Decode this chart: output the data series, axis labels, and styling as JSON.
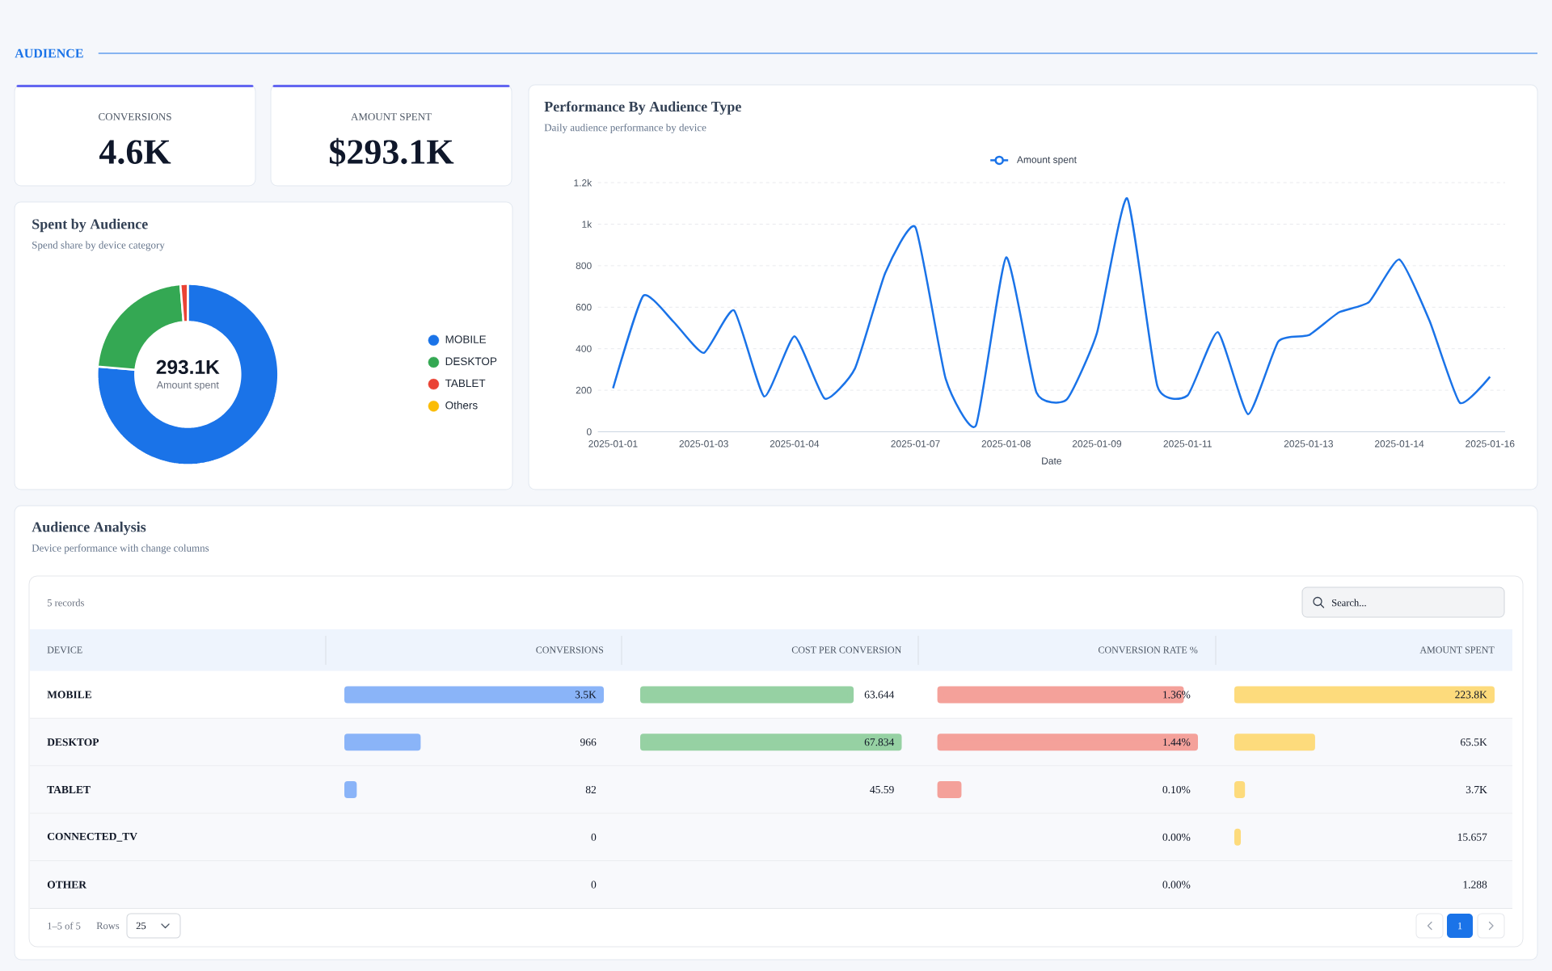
{
  "chart_data": [
    {
      "type": "other",
      "title": "AUDIENCE",
      "annotations": [
        "CONVERSIONS",
        "4.6K",
        "AMOUNT SPENT",
        "$293.1K"
      ]
    },
    {
      "type": "donut",
      "title": "Spent by Audience",
      "subtitle": "Spend share by device category",
      "categories": [
        "MOBILE",
        "DESKTOP",
        "TABLET",
        "Others"
      ],
      "values": [
        76.4,
        22.3,
        1.3,
        0
      ],
      "colors": [
        "#1a73e8",
        "#34a853",
        "#ea4335",
        "#fbbc04"
      ],
      "legend": "right",
      "annotations": [
        "293.1K",
        "Amount spent"
      ]
    },
    {
      "type": "line",
      "title": "Performance By Audience Type",
      "subtitle": "Daily audience performance by device",
      "xlabel": "Date",
      "categories": [
        "2025-01-01",
        null,
        null,
        "2025-01-03",
        null,
        null,
        "2025-01-04",
        null,
        null,
        null,
        "2025-01-07",
        null,
        null,
        "2025-01-08",
        null,
        null,
        "2025-01-09",
        null,
        null,
        "2025-01-11",
        null,
        null,
        null,
        "2025-01-13",
        null,
        null,
        "2025-01-14",
        null,
        null,
        "2025-01-16"
      ],
      "series": [
        {
          "name": "Amount spent",
          "color": "#1a73e8",
          "values": [
            210,
            655,
            530,
            380,
            585,
            170,
            460,
            160,
            305,
            765,
            985,
            255,
            30,
            840,
            190,
            155,
            475,
            1125,
            220,
            175,
            480,
            85,
            435,
            465,
            575,
            625,
            830,
            535,
            140,
            265
          ]
        }
      ],
      "ylim": [
        0,
        1200
      ],
      "yticks": [
        0,
        200,
        400,
        600,
        800,
        {
          "value": 1000,
          "label": "1k"
        },
        {
          "value": 1200,
          "label": "1.2k"
        }
      ],
      "grid": "y",
      "legend": "top"
    },
    {
      "type": "other",
      "title": "Audience Analysis",
      "subtitle": "Device performance with change columns",
      "annotations": [
        "5 records",
        "Search...",
        "1–5 of 5",
        "Rows",
        "25",
        "1"
      ]
    },
    {
      "type": "bar",
      "orientation": "horizontal",
      "ylabel": "DEVICE",
      "xlabel": "CONVERSIONS",
      "categories": [
        "MOBILE",
        "DESKTOP",
        "TABLET",
        "CONNECTED_TV",
        "OTHER"
      ],
      "values": [
        3500,
        966,
        82,
        0,
        0
      ],
      "value_labels": [
        "3.5K",
        "966",
        "82",
        "0",
        "0"
      ],
      "xlim": [
        0,
        3500
      ],
      "color": "#8ab4f8",
      "tick_labels": "y"
    },
    {
      "type": "bar",
      "orientation": "horizontal",
      "xlabel": "COST PER CONVERSION",
      "categories": [
        null,
        null,
        null,
        null,
        null
      ],
      "values": [
        63.644,
        67.834,
        45.59,
        null,
        null
      ],
      "value_labels": [
        "63.644",
        "67.834",
        "45.59",
        null,
        null
      ],
      "xlim": [
        45.59,
        67.834
      ],
      "color": "#96d1a3",
      "tick_labels": false
    },
    {
      "type": "bar",
      "orientation": "horizontal",
      "xlabel": "CONVERSION RATE %",
      "categories": [
        null,
        null,
        null,
        null,
        null
      ],
      "values": [
        1.36,
        1.44,
        0.1,
        0.0,
        0.0
      ],
      "value_labels": [
        "1.36%",
        "1.44%",
        "0.10%",
        "0.00%",
        "0.00%"
      ],
      "xlim": [
        0,
        1.44
      ],
      "color": "#f4a19a",
      "tick_labels": false
    },
    {
      "type": "bar",
      "orientation": "horizontal",
      "xlabel": "AMOUNT SPENT",
      "categories": [
        null,
        null,
        null,
        null,
        null
      ],
      "values": [
        223800,
        65500,
        3700,
        15.657,
        1.288
      ],
      "value_labels": [
        "223.8K",
        "65.5K",
        "3.7K",
        "15.657",
        "1.288"
      ],
      "xlim": [
        1.288,
        223800
      ],
      "color": "#fddb7c",
      "tick_labels": false
    }
  ]
}
